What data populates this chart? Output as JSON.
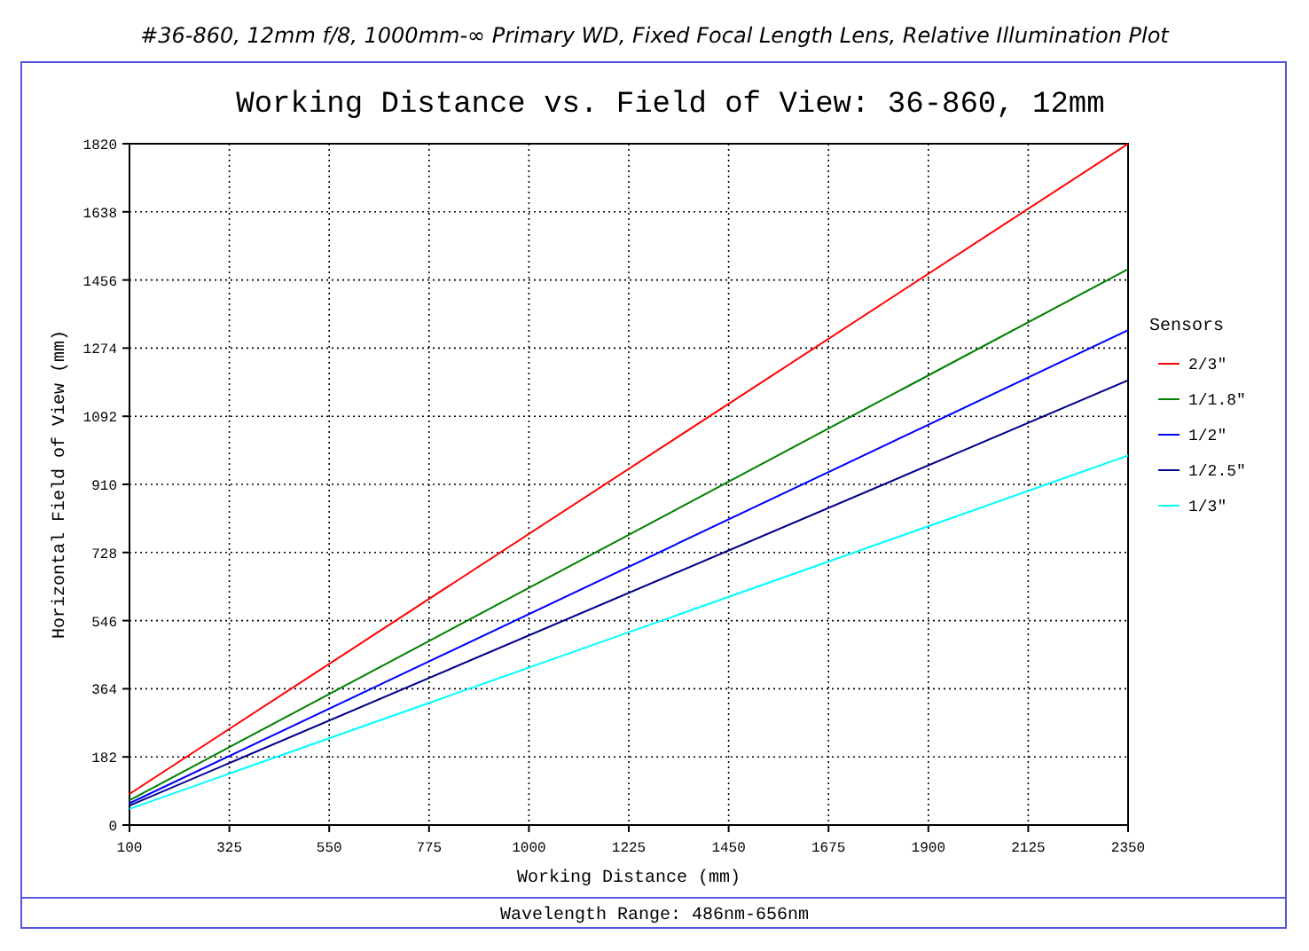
{
  "chart_data": {
    "type": "line",
    "title": "Working Distance vs. Field of View: 36-860, 12mm",
    "subtitle": "#36-860, 12mm f/8, 1000mm-∞ Primary WD, Fixed Focal Length Lens, Relative Illumination Plot",
    "xlabel": "Working Distance (mm)",
    "ylabel": "Horizontal Field of View (mm)",
    "legend_title": "Sensors",
    "annotations": [
      "Wavelength Range: 486nm-656nm"
    ],
    "x": [
      100,
      2350
    ],
    "series": [
      {
        "name": "2/3\"",
        "color": "#ff0000",
        "values": [
          83,
          1820
        ]
      },
      {
        "name": "1/1.8\"",
        "color": "#008000",
        "values": [
          66,
          1485
        ]
      },
      {
        "name": "1/2\"",
        "color": "#0000ff",
        "values": [
          58,
          1322
        ]
      },
      {
        "name": "1/2.5\"",
        "color": "#00008b",
        "values": [
          52,
          1188
        ]
      },
      {
        "name": "1/3\"",
        "color": "#00ffff",
        "values": [
          43,
          987
        ]
      }
    ],
    "xlim": [
      100,
      2350
    ],
    "xticks": [
      100,
      325,
      550,
      775,
      1000,
      1225,
      1450,
      1675,
      1900,
      2125,
      2350
    ],
    "ylim": [
      0,
      1820
    ],
    "yticks": [
      0,
      182,
      364,
      546,
      728,
      910,
      1092,
      1274,
      1456,
      1638,
      1820
    ],
    "grid": true,
    "legend": "right",
    "line_style": "solid"
  }
}
